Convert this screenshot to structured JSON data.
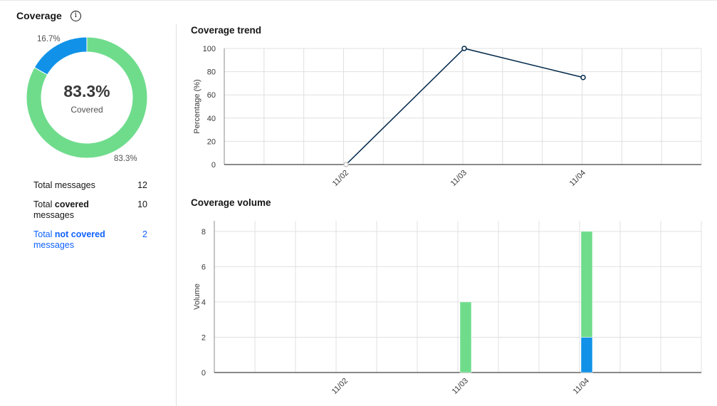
{
  "coverage": {
    "title": "Coverage",
    "info_icon": "info-icon",
    "donut": {
      "center_value": "83.3%",
      "center_label": "Covered",
      "slices": [
        {
          "name": "covered",
          "value": 83.3,
          "label": "83.3%",
          "color": "#6fdc8c"
        },
        {
          "name": "not-covered",
          "value": 16.7,
          "label": "16.7%",
          "color": "#1192e8"
        }
      ]
    },
    "stats": {
      "total_messages": {
        "label": "Total messages",
        "value": "12"
      },
      "total_covered": {
        "prefix": "Total ",
        "strong": "covered",
        "suffix": "messages",
        "value": "10"
      },
      "total_not_covered": {
        "prefix": "Total ",
        "strong": "not covered",
        "suffix": "messages",
        "value": "2"
      }
    }
  },
  "chart_data": [
    {
      "type": "line",
      "title": "Coverage trend",
      "ylabel": "Percentage (%)",
      "xlabel": "",
      "categories": [
        "11/02",
        "11/03",
        "11/04"
      ],
      "series": [
        {
          "values": [
            0,
            100,
            75
          ],
          "color": "#012749"
        }
      ],
      "ylim": [
        0,
        100
      ],
      "yticks": [
        0,
        20,
        40,
        60,
        80,
        100
      ],
      "grid": true
    },
    {
      "type": "bar",
      "title": "Coverage volume",
      "ylabel": "Volume",
      "xlabel": "",
      "stacked": true,
      "categories": [
        "11/02",
        "11/03",
        "11/04"
      ],
      "series": [
        {
          "values": [
            0,
            0,
            2
          ],
          "color": "#1192e8"
        },
        {
          "values": [
            0,
            4,
            6
          ],
          "color": "#6fdc8c"
        }
      ],
      "ylim": [
        0,
        8.6
      ],
      "yticks": [
        0,
        2,
        4,
        6,
        8
      ],
      "grid": true
    }
  ]
}
